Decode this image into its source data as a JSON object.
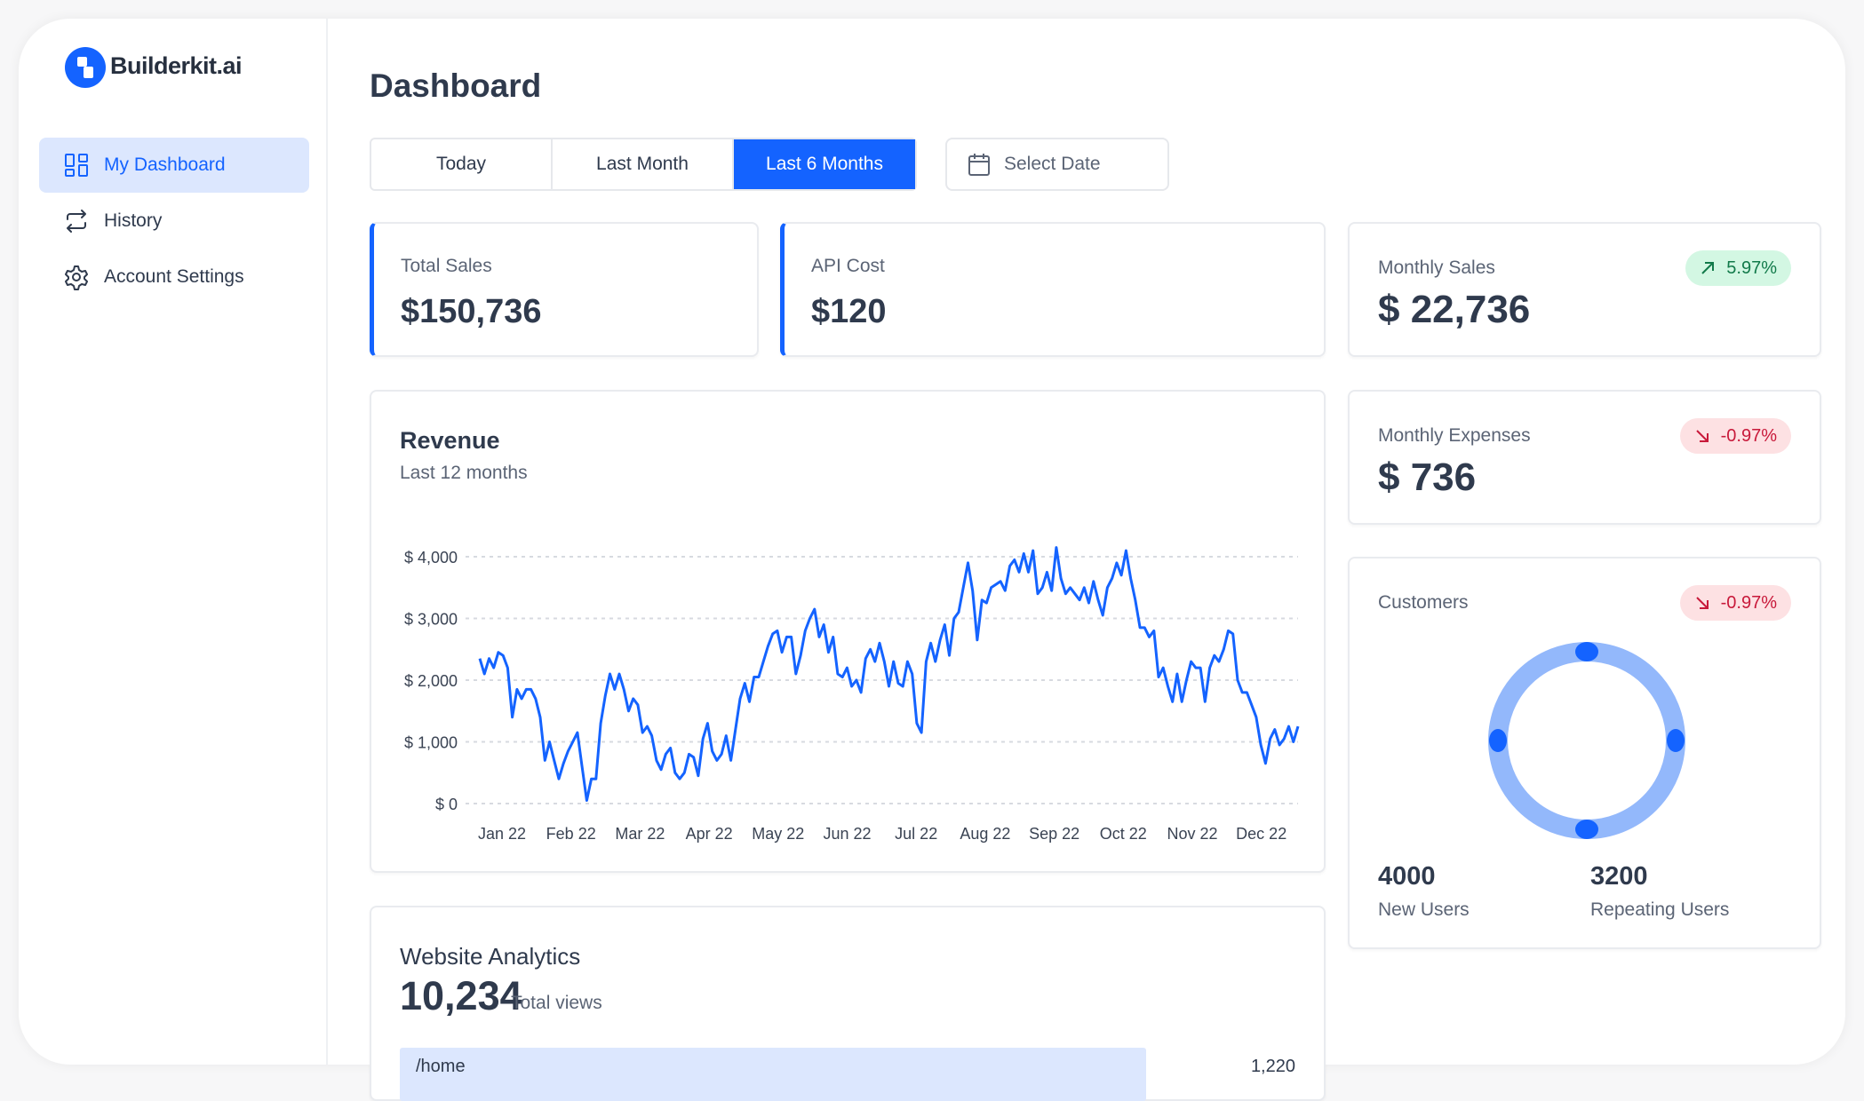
{
  "brand": {
    "name": "Builderkit.ai",
    "accent": "#1463ff"
  },
  "sidebar": {
    "items": [
      {
        "label": "My Dashboard",
        "icon": "dashboard-grid-icon",
        "active": true
      },
      {
        "label": "History",
        "icon": "repeat-arrows-icon"
      },
      {
        "label": "Account Settings",
        "icon": "gear-icon"
      }
    ]
  },
  "header": {
    "title": "Dashboard"
  },
  "filters": {
    "tabs": [
      {
        "label": "Today"
      },
      {
        "label": "Last Month"
      },
      {
        "label": "Last 6 Months",
        "active": true
      }
    ],
    "date_placeholder": "Select Date"
  },
  "stats": {
    "total_sales": {
      "label": "Total Sales",
      "value": "$150,736"
    },
    "api_cost": {
      "label": "API Cost",
      "value": "$120"
    },
    "monthly_sales": {
      "label": "Monthly Sales",
      "value": "$ 22,736",
      "change": "5.97%",
      "trend": "up",
      "color": "#127a4a"
    },
    "monthly_expenses": {
      "label": "Monthly Expenses",
      "value": "$ 736",
      "change": "-0.97%",
      "trend": "down",
      "color": "#c8193a"
    }
  },
  "customers": {
    "label": "Customers",
    "change": "-0.97%",
    "trend": "down",
    "new_users": {
      "value": "4000",
      "label": "New Users"
    },
    "repeating_users": {
      "value": "3200",
      "label": "Repeating Users"
    },
    "ring_color": "#93b8fb"
  },
  "revenue": {
    "title": "Revenue",
    "subtitle": "Last 12 months"
  },
  "analytics": {
    "title": "Website Analytics",
    "total": "10,234",
    "total_label": "Total views",
    "rows": [
      {
        "path": "/home",
        "views": "1,220"
      }
    ]
  },
  "chart_data": {
    "type": "line",
    "title": "Revenue",
    "subtitle": "Last 12 months",
    "x_ticks": [
      "Jan 22",
      "Feb 22",
      "Mar 22",
      "Apr 22",
      "May 22",
      "Jun 22",
      "Jul 22",
      "Aug 22",
      "Sep 22",
      "Oct 22",
      "Nov 22",
      "Dec 22"
    ],
    "y_ticks": [
      {
        "value": 4000,
        "label": "$ 4,000"
      },
      {
        "value": 3000,
        "label": "$ 3,000"
      },
      {
        "value": 2000,
        "label": "$ 2,000"
      },
      {
        "value": 1000,
        "label": "$ 1,000"
      },
      {
        "value": 0,
        "label": "$ 0"
      }
    ],
    "ylim": [
      0,
      4000
    ],
    "grid": true,
    "line_color": "#1463ff",
    "series": [
      {
        "values": [
          2350,
          2100,
          2350,
          2200,
          2450,
          2400,
          2200,
          1400,
          1850,
          1700,
          1850,
          1850,
          1700,
          1400,
          700,
          1000,
          700,
          400,
          650,
          850,
          1000,
          1150,
          600,
          50,
          400,
          400,
          1300,
          1750,
          2100,
          1850,
          2100,
          1850,
          1500,
          1700,
          1600,
          1150,
          1250,
          1100,
          700,
          550,
          800,
          900,
          500,
          400,
          500,
          800,
          750,
          450,
          1050,
          1300,
          850,
          700,
          800,
          1100,
          700,
          1200,
          1700,
          1950,
          1650,
          2050,
          2050,
          2300,
          2550,
          2750,
          2800,
          2450,
          2700,
          2700,
          2100,
          2400,
          2800,
          3000,
          3150,
          2700,
          2900,
          2450,
          2700,
          2100,
          2050,
          2200,
          1900,
          2000,
          1800,
          2350,
          2500,
          2300,
          2600,
          2300,
          1900,
          2300,
          1950,
          1900,
          2300,
          2100,
          1300,
          1150,
          2300,
          2600,
          2300,
          2650,
          2900,
          2400,
          3000,
          3100,
          3500,
          3900,
          3450,
          2650,
          3300,
          3250,
          3500,
          3550,
          3600,
          3450,
          3850,
          3950,
          3750,
          4050,
          3750,
          4100,
          3400,
          3500,
          3750,
          3450,
          4150,
          3650,
          3400,
          3500,
          3400,
          3300,
          3500,
          3250,
          3600,
          3300,
          3050,
          3500,
          3650,
          3900,
          3700,
          4100,
          3650,
          3300,
          2850,
          2850,
          2700,
          2800,
          2050,
          2200,
          1900,
          1650,
          2100,
          1650,
          2000,
          2300,
          2200,
          2200,
          1650,
          2200,
          2400,
          2300,
          2500,
          2800,
          2750,
          2000,
          1800,
          1800,
          1600,
          1400,
          950,
          650,
          1050,
          1200,
          950,
          1050,
          1250,
          1000,
          1250
        ]
      }
    ]
  }
}
